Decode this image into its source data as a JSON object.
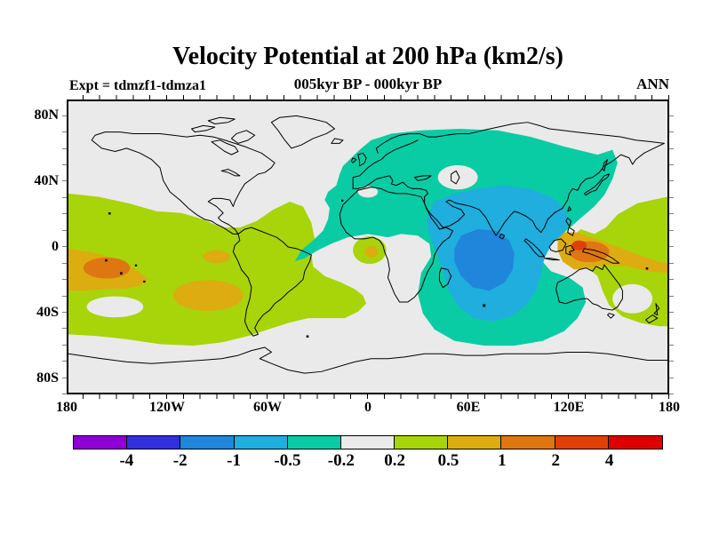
{
  "header": {
    "title": "Velocity Potential at 200 hPa (km2/s)",
    "subtitle": "005kyr BP - 000kyr BP",
    "experiment": "Expt = tdmzf1-tdmza1",
    "season": "ANN"
  },
  "palette": {
    "violet": "#8E00D6",
    "indigo": "#3230DC",
    "blue": "#1F86DC",
    "cyan": "#1FAEDE",
    "teal": "#0ACCA4",
    "gray": "#EAEAEA",
    "green": "#A8D40A",
    "gold": "#DCAC10",
    "orange": "#DE7612",
    "redorange": "#E04008",
    "red": "#DE0000",
    "coastline": "#000000"
  },
  "axes": {
    "x_ticks": [
      {
        "label": "180",
        "lon": -180
      },
      {
        "label": "120W",
        "lon": -120
      },
      {
        "label": "60W",
        "lon": -60
      },
      {
        "label": "0",
        "lon": 0
      },
      {
        "label": "60E",
        "lon": 60
      },
      {
        "label": "120E",
        "lon": 120
      },
      {
        "label": "180",
        "lon": 180
      }
    ],
    "y_ticks": [
      {
        "label": "80N",
        "lat": 80
      },
      {
        "label": "40N",
        "lat": 40
      },
      {
        "label": "0",
        "lat": 0
      },
      {
        "label": "40S",
        "lat": -40
      },
      {
        "label": "80S",
        "lat": -80
      }
    ],
    "minor_tick_interval_deg": 10
  },
  "colorbar": {
    "boundary_labels": [
      "-4",
      "-2",
      "-1",
      "-0.5",
      "-0.2",
      "0.2",
      "0.5",
      "1",
      "2",
      "4"
    ],
    "segments": [
      {
        "range": "< -4",
        "color": "#8E00D6"
      },
      {
        "range": "-4 to -2",
        "color": "#3230DC"
      },
      {
        "range": "-2 to -1",
        "color": "#1F86DC"
      },
      {
        "range": "-1 to -0.5",
        "color": "#1FAEDE"
      },
      {
        "range": "-0.5 to -0.2",
        "color": "#0ACCA4"
      },
      {
        "range": "-0.2 to 0.2",
        "color": "#EAEAEA"
      },
      {
        "range": "0.2 to 0.5",
        "color": "#A8D40A"
      },
      {
        "range": "0.5 to 1",
        "color": "#DCAC10"
      },
      {
        "range": "1 to 2",
        "color": "#DE7612"
      },
      {
        "range": "2 to 4",
        "color": "#E04008"
      },
      {
        "range": "> 4",
        "color": "#DE0000"
      }
    ]
  },
  "chart_data": {
    "type": "heatmap",
    "title": "Velocity Potential at 200 hPa (km2/s)",
    "subtitle": "005kyr BP - 000kyr BP",
    "annotations": [
      "Expt = tdmzf1-tdmza1",
      "ANN"
    ],
    "units": "km2/s",
    "projection": "equirectangular world map, 180W to 180E, 90S to 90N, filled contours with coastlines",
    "contour_levels": [
      -4,
      -2,
      -1,
      -0.5,
      -0.2,
      0.2,
      0.5,
      1,
      2,
      4
    ],
    "x_tick_labels": [
      "180",
      "120W",
      "60W",
      "0",
      "60E",
      "120E",
      "180"
    ],
    "y_tick_labels": [
      "80N",
      "40N",
      "0",
      "40S",
      "80S"
    ],
    "legend_position": "horizontal colorbar below map",
    "features": [
      {
        "description": "Broad weak negative anomaly covering Europe, Asia, north Africa and the Indian Ocean down to ~60S",
        "value_range": "-0.5 to -0.2",
        "approx_extent": "20W-150E, 72N-60S"
      },
      {
        "description": "Stronger negative cell over South Asia and central Indian Ocean",
        "value_range": "-1 to -0.5",
        "approx_extent": "35E-120E, 38N-45S"
      },
      {
        "description": "Negative core over the western equatorial Indian Ocean",
        "value_range": "-2 to -1",
        "approx_center": "70E, 8S"
      },
      {
        "description": "Narrow negative tongue reaching southwest across the equatorial Atlantic",
        "value_range": "-0.5 to -0.2",
        "approx_extent": "45W-10W near equator"
      },
      {
        "description": "Broad positive band over the central and eastern Pacific, South America and South Atlantic",
        "value_range": "0.2 to 0.5",
        "approx_extent": "180-10W, 33N-55S"
      },
      {
        "description": "Positive cell west of the dateline in the South Pacific with embedded maximum",
        "value_range": "1 to 2",
        "approx_center": "157W, 13S"
      },
      {
        "description": "Positive band over Maritime Continent / New Guinea with strong core",
        "value_range": "2 to 4",
        "approx_center": "127E, 1N"
      },
      {
        "description": "Secondary positive cell in the southeast Pacific",
        "value_range": "0.5 to 1",
        "approx_center": "96W, 30S"
      },
      {
        "description": "Small positive cell over the Gulf of Guinea",
        "value_range": "0.5 to 1",
        "approx_center": "2E, 3S"
      },
      {
        "description": "Near-zero band over North America, North Pacific, Caspian region, Tasman Sea and polar latitudes",
        "value_range": "-0.2 to 0.2"
      }
    ]
  }
}
